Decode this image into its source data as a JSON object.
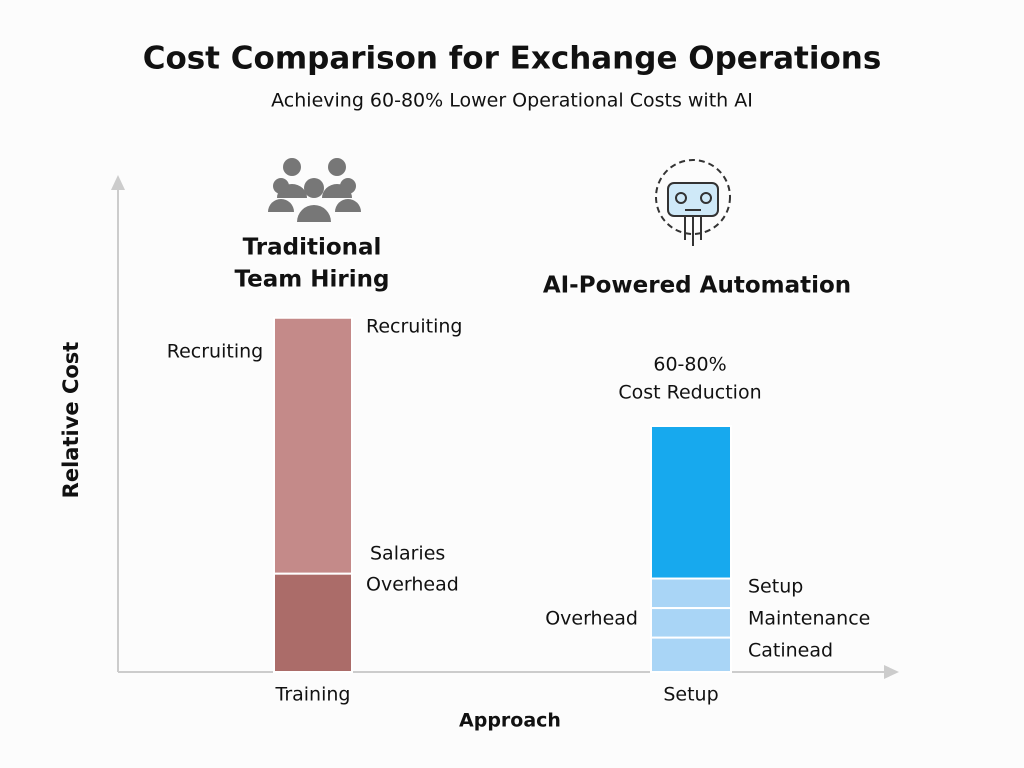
{
  "chart_data": {
    "type": "bar",
    "stacked": true,
    "title": "Cost Comparison for Exchange Operations",
    "subtitle": "Achieving 60-80% Lower Operational Costs with AI",
    "xlabel": "Approach",
    "ylabel": "Relative Cost",
    "categories": [
      "Training",
      "Setup"
    ],
    "group_titles": [
      [
        "Traditional",
        "Team Hiring"
      ],
      [
        "AI-Powered Automation"
      ]
    ],
    "ylim": [
      0,
      100
    ],
    "bars": [
      {
        "segments": [
          {
            "value": 20,
            "color": "#ab6c69"
          },
          {
            "value": 52,
            "color": "#c48a89"
          }
        ]
      },
      {
        "segments": [
          {
            "value": 7,
            "color": "#a9d5f6"
          },
          {
            "value": 6,
            "color": "#a9d5f6"
          },
          {
            "value": 6,
            "color": "#a9d5f6"
          },
          {
            "value": 31,
            "color": "#17a9ee"
          }
        ]
      }
    ],
    "annotations": [
      "Recruiting",
      "Recruiting",
      "Salaries",
      "Overhead",
      "Overhead",
      "Setup",
      "Maintenance",
      "Catinead",
      "60-80%",
      "Cost Reduction"
    ]
  }
}
